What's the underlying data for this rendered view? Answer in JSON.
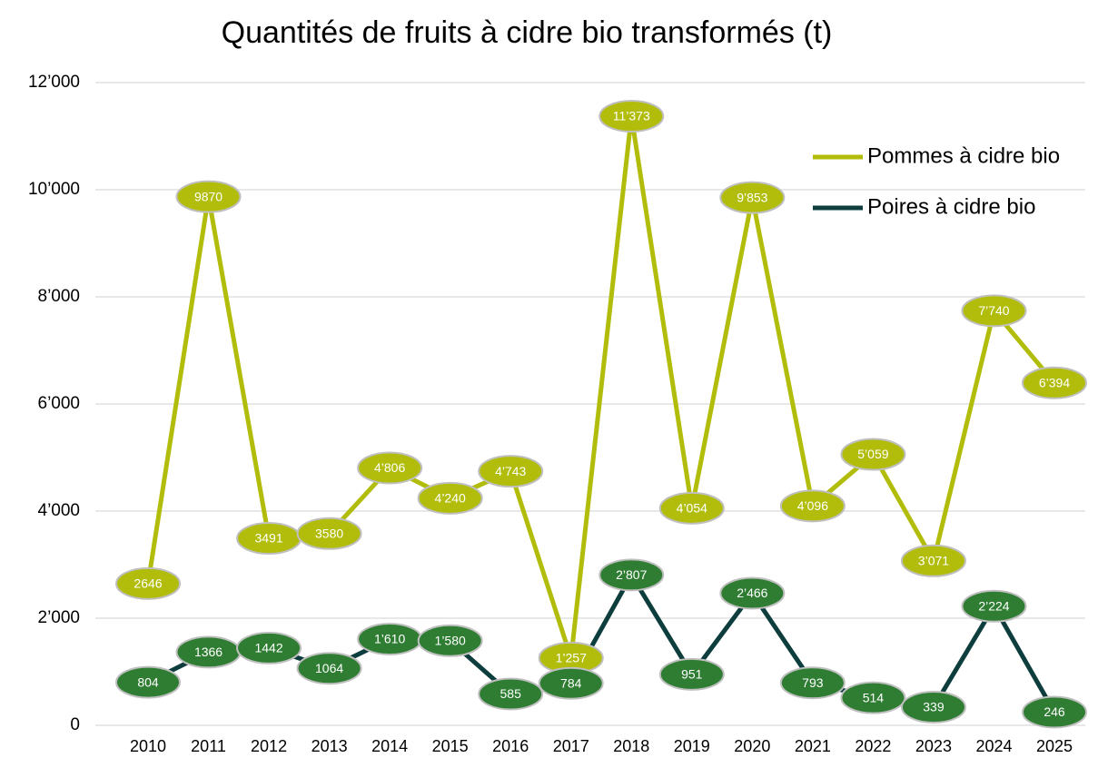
{
  "chart_data": {
    "type": "line",
    "title": "Quantités de fruits à cidre bio transformés (t)",
    "categories": [
      "2010",
      "2011",
      "2012",
      "2013",
      "2014",
      "2015",
      "2016",
      "2017",
      "2018",
      "2019",
      "2020",
      "2021",
      "2022",
      "2023",
      "2024",
      "2025"
    ],
    "series": [
      {
        "name": "Pommes à cidre bio",
        "color": "#b1bd0a",
        "label_color": "#b1bd0a",
        "values": [
          2646,
          9870,
          3491,
          3580,
          4806,
          4240,
          4743,
          1257,
          11373,
          4054,
          9853,
          4096,
          5059,
          3071,
          7740,
          6394
        ],
        "value_labels": [
          "2646",
          "9870",
          "3491",
          "3580",
          "4’806",
          "4’240",
          "4’743",
          "1’257",
          "11’373",
          "4’054",
          "9’853",
          "4’096",
          "5’059",
          "3’071",
          "7’740",
          "6’394"
        ]
      },
      {
        "name": "Poires à cidre bio",
        "color": "#0e3d3d",
        "label_color": "#2e7d32",
        "values": [
          804,
          1366,
          1442,
          1064,
          1610,
          1580,
          585,
          784,
          2807,
          951,
          2466,
          793,
          514,
          339,
          2224,
          246
        ],
        "value_labels": [
          "804",
          "1366",
          "1442",
          "1064",
          "1’610",
          "1’580",
          "585",
          "784",
          "2’807",
          "951",
          "2’466",
          "793",
          "514",
          "339",
          "2’224",
          "246"
        ]
      }
    ],
    "ylim": [
      0,
      12000
    ],
    "yticks": [
      0,
      {
        "value": 2000,
        "label": "2’000"
      },
      {
        "value": 4000,
        "label": "4’000"
      },
      {
        "value": 6000,
        "label": "6’000"
      },
      {
        "value": 8000,
        "label": "8’000"
      },
      {
        "value": 10000,
        "label": "10’000"
      },
      {
        "value": 12000,
        "label": "12’000"
      }
    ],
    "grid": true,
    "legend": "upper right"
  }
}
